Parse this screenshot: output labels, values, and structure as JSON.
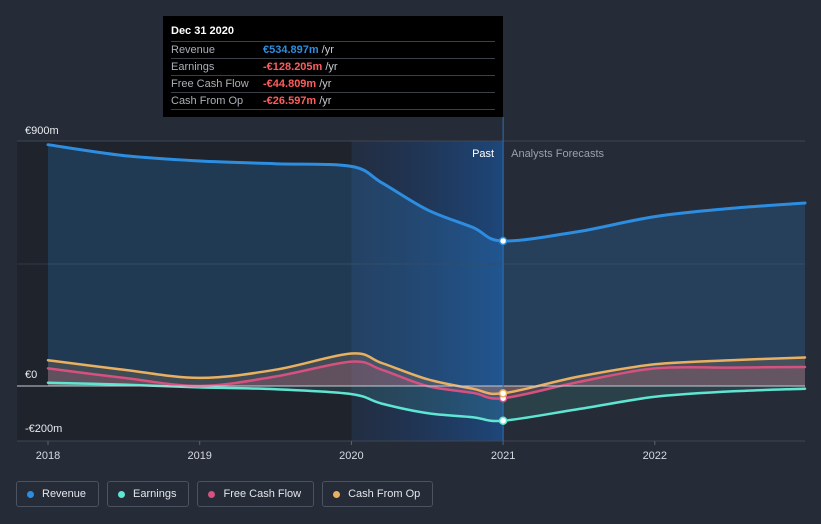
{
  "tooltip": {
    "date": "Dec 31 2020",
    "rows": [
      {
        "name": "Revenue",
        "value": "€534.897m",
        "unit": "/yr",
        "color": "#2d8de0"
      },
      {
        "name": "Earnings",
        "value": "-€128.205m",
        "unit": "/yr",
        "color": "#ff5d5d"
      },
      {
        "name": "Free Cash Flow",
        "value": "-€44.809m",
        "unit": "/yr",
        "color": "#ff5d5d"
      },
      {
        "name": "Cash From Op",
        "value": "-€26.597m",
        "unit": "/yr",
        "color": "#ff5d5d"
      }
    ]
  },
  "periods": {
    "past": "Past",
    "forecast": "Analysts Forecasts"
  },
  "legend": [
    {
      "label": "Revenue",
      "color": "#2d8de0"
    },
    {
      "label": "Earnings",
      "color": "#5ee6d2"
    },
    {
      "label": "Free Cash Flow",
      "color": "#d6517f"
    },
    {
      "label": "Cash From Op",
      "color": "#e9b062"
    }
  ],
  "chart_data": {
    "type": "area",
    "title": "",
    "xlabel": "",
    "ylabel": "",
    "ylim": [
      -200,
      900
    ],
    "y_labels": [
      "€900m",
      "€0",
      "-€200m"
    ],
    "y_label_values": [
      900,
      0,
      -200
    ],
    "x_ticks": [
      "2018",
      "2019",
      "2020",
      "2021",
      "2022"
    ],
    "x_tick_values": [
      2018,
      2019,
      2020,
      2021,
      2022
    ],
    "xlim": [
      2018,
      2022.99
    ],
    "past_region": [
      2020,
      2021
    ],
    "highlight_x": 2021,
    "series": [
      {
        "name": "Revenue",
        "color": "#2d8de0",
        "x": [
          2018,
          2018.5,
          2019,
          2019.5,
          2020,
          2020.2,
          2020.5,
          2020.8,
          2021,
          2021.5,
          2022,
          2022.5,
          2022.99
        ],
        "values": [
          890,
          850,
          830,
          820,
          810,
          750,
          650,
          585,
          535,
          570,
          625,
          655,
          675
        ]
      },
      {
        "name": "Earnings",
        "color": "#5ee6d2",
        "x": [
          2018,
          2018.5,
          2019,
          2019.5,
          2020,
          2020.2,
          2020.5,
          2020.8,
          2021,
          2021.5,
          2022,
          2022.5,
          2022.99
        ],
        "values": [
          12,
          5,
          -5,
          -12,
          -30,
          -65,
          -100,
          -115,
          -128,
          -85,
          -40,
          -20,
          -10
        ]
      },
      {
        "name": "Free Cash Flow",
        "color": "#d6517f",
        "x": [
          2018,
          2018.5,
          2019,
          2019.5,
          2020,
          2020.2,
          2020.5,
          2020.8,
          2021,
          2021.5,
          2022,
          2022.5,
          2022.99
        ],
        "values": [
          65,
          30,
          0,
          35,
          90,
          60,
          0,
          -25,
          -45,
          15,
          65,
          68,
          70
        ]
      },
      {
        "name": "Cash From Op",
        "color": "#e9b062",
        "x": [
          2018,
          2018.5,
          2019,
          2019.5,
          2020,
          2020.2,
          2020.5,
          2020.8,
          2021,
          2021.5,
          2022,
          2022.5,
          2022.99
        ],
        "values": [
          95,
          60,
          30,
          60,
          120,
          85,
          25,
          -10,
          -27,
          35,
          80,
          95,
          105
        ]
      }
    ]
  }
}
